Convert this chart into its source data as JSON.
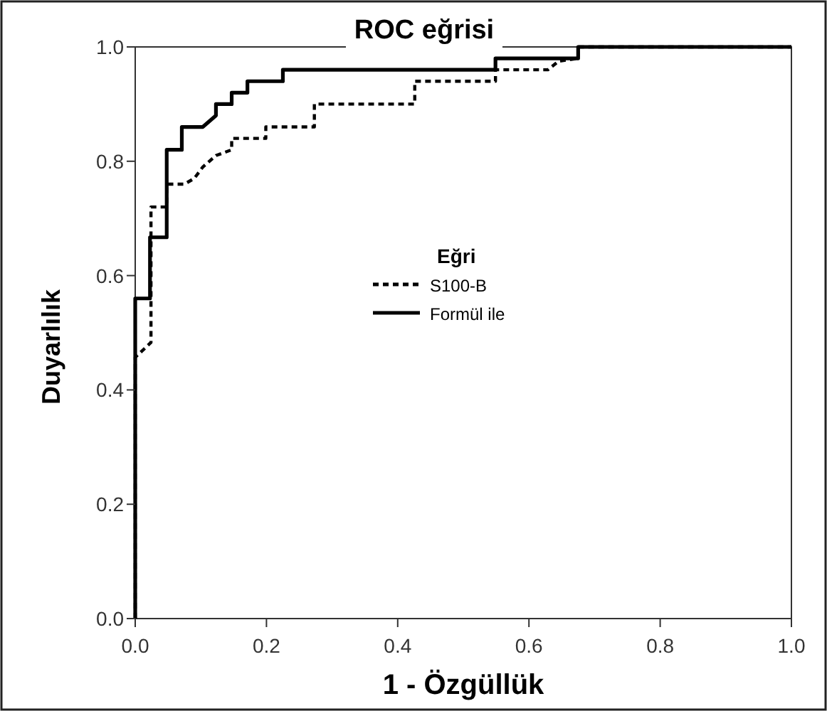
{
  "chart_data": {
    "type": "line",
    "title": "ROC eğrisi",
    "xlabel": "1 - Özgüllük",
    "ylabel": "Duyarlılık",
    "legend_title": "Eğri",
    "legend": "center",
    "grid": false,
    "marker": "none",
    "xlim": [
      0,
      1
    ],
    "ylim": [
      0,
      1
    ],
    "xticks": [
      {
        "value": 0,
        "label": "0.0"
      },
      {
        "value": 0.2,
        "label": "0.2"
      },
      {
        "value": 0.4,
        "label": "0.4"
      },
      {
        "value": 0.6,
        "label": "0.6"
      },
      {
        "value": 0.8,
        "label": "0.8"
      },
      {
        "value": 1,
        "label": "1.0"
      }
    ],
    "yticks": [
      {
        "value": 0,
        "label": "0.0"
      },
      {
        "value": 0.2,
        "label": "0.2"
      },
      {
        "value": 0.4,
        "label": "0.4"
      },
      {
        "value": 0.6,
        "label": "0.6"
      },
      {
        "value": 0.8,
        "label": "0.8"
      },
      {
        "value": 1,
        "label": "1.0"
      }
    ],
    "series": [
      {
        "name": "S100-B",
        "color": "#000000",
        "line_style": "dashed",
        "x": [
          0,
          0,
          0.024,
          0.024,
          0.048,
          0.048,
          0.075,
          0.09,
          0.103,
          0.123,
          0.123,
          0.147,
          0.147,
          0.199,
          0.199,
          0.273,
          0.273,
          0.426,
          0.426,
          0.549,
          0.549,
          0.629,
          0.645,
          0.675,
          0.675,
          1
        ],
        "values": [
          0,
          0.457,
          0.483,
          0.72,
          0.72,
          0.76,
          0.76,
          0.77,
          0.79,
          0.81,
          0.81,
          0.82,
          0.84,
          0.84,
          0.86,
          0.86,
          0.9,
          0.9,
          0.94,
          0.94,
          0.96,
          0.96,
          0.975,
          0.98,
          1,
          1
        ]
      },
      {
        "name": "Formül ile",
        "color": "#000000",
        "line_style": "solid",
        "x": [
          0,
          0,
          0.0225,
          0.0225,
          0.048,
          0.048,
          0.071,
          0.071,
          0.103,
          0.123,
          0.123,
          0.147,
          0.147,
          0.171,
          0.171,
          0.225,
          0.225,
          0.549,
          0.549,
          0.675,
          0.675,
          1
        ],
        "values": [
          0,
          0.56,
          0.56,
          0.667,
          0.667,
          0.82,
          0.82,
          0.86,
          0.86,
          0.88,
          0.9,
          0.9,
          0.92,
          0.92,
          0.94,
          0.94,
          0.96,
          0.96,
          0.98,
          0.98,
          1,
          1
        ]
      }
    ]
  }
}
